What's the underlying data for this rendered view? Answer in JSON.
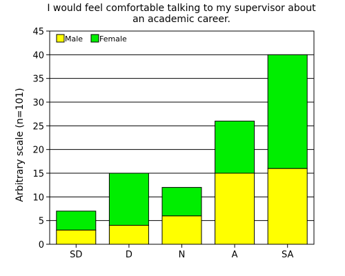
{
  "chart_data": {
    "type": "bar",
    "stacked": true,
    "title_line1": "I would feel comfortable talking to my supervisor about",
    "title_line2": "an academic career.",
    "xlabel": "",
    "ylabel": "Arbitrary scale (n=101)",
    "categories": [
      "SD",
      "D",
      "N",
      "A",
      "SA"
    ],
    "series": [
      {
        "name": "Male",
        "color": "#ffff00",
        "values": [
          3,
          4,
          6,
          15,
          16
        ]
      },
      {
        "name": "Female",
        "color": "#00ee00",
        "values": [
          4,
          11,
          6,
          11,
          24
        ]
      }
    ],
    "ylim": [
      0,
      45
    ],
    "yticks": [
      0,
      5,
      10,
      15,
      20,
      25,
      30,
      35,
      40,
      45
    ],
    "grid": "horizontal",
    "legend_position": "top-left"
  }
}
